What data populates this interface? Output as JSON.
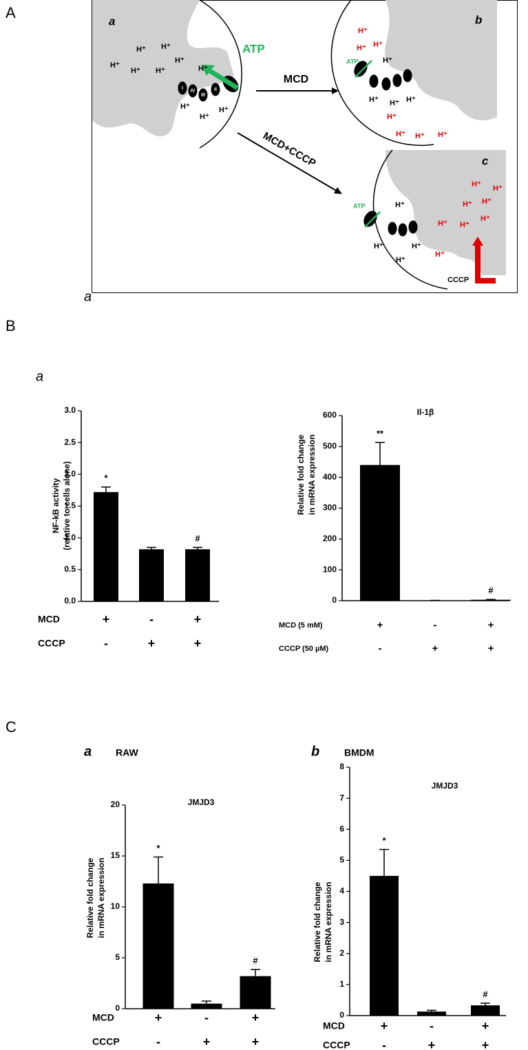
{
  "panel_labels": [
    "A",
    "B",
    "C"
  ],
  "diagram": {
    "stray_label": "a",
    "cells": [
      "a",
      "b",
      "c"
    ],
    "arrows": [
      "MCD",
      "MCD+CCCP"
    ],
    "atp": "ATP",
    "uncoupler": "CCCP",
    "proton": "H⁺",
    "complexes": [
      "I",
      "IV",
      "III",
      "II"
    ]
  },
  "sub_labels": {
    "B": "a",
    "C": [
      "a",
      "b"
    ],
    "C_cells": [
      "RAW",
      "BMDM"
    ]
  },
  "chart_data": [
    {
      "type": "bar",
      "ylabel": [
        "NF-kB activity",
        "(relative to cells alone)"
      ],
      "categories": [
        null,
        null,
        null
      ],
      "values": [
        1.72,
        0.82,
        0.82
      ],
      "errors": [
        0.08,
        0.03,
        0.03
      ],
      "color": "#000000",
      "ylim": [
        0,
        3
      ],
      "yticks": [
        {
          "value": 0,
          "label": "0.0"
        },
        0.5,
        {
          "value": 1,
          "label": "1.0"
        },
        1.5,
        {
          "value": 2,
          "label": "2.0"
        },
        2.5,
        {
          "value": 3,
          "label": "3.0"
        }
      ],
      "bar_annotations": [
        {
          "bar": 0,
          "text": "*"
        },
        {
          "bar": 2,
          "text": "#"
        }
      ],
      "treatments": [
        {
          "label": "MCD",
          "signs": [
            "+",
            "-",
            "+"
          ]
        },
        {
          "label": "CCCP",
          "signs": [
            "-",
            "+",
            "+"
          ]
        }
      ]
    },
    {
      "type": "bar",
      "title": "Il-1β",
      "ylabel": [
        "Relative fold change",
        "in mRNA expression"
      ],
      "categories": [
        null,
        null,
        null
      ],
      "values": [
        440,
        1,
        3
      ],
      "errors": [
        73,
        0,
        1
      ],
      "color": "#000000",
      "ylim": [
        0,
        600
      ],
      "yticks": [
        0,
        100,
        200,
        300,
        400,
        500,
        600
      ],
      "bar_annotations": [
        {
          "bar": 0,
          "text": "**"
        },
        {
          "bar": 2,
          "text": "#"
        }
      ],
      "treatments": [
        {
          "label": "MCD (5 mM)",
          "signs": [
            "+",
            "-",
            "+"
          ]
        },
        {
          "label": "CCCP (50 µM)",
          "signs": [
            "-",
            "+",
            "+"
          ]
        }
      ]
    },
    {
      "type": "bar",
      "title": "JMJD3",
      "ylabel": [
        "Relative fold change",
        "in mRNA expression"
      ],
      "categories": [
        null,
        null,
        null
      ],
      "values": [
        12.3,
        0.5,
        3.2
      ],
      "errors": [
        2.6,
        0.25,
        0.65
      ],
      "color": "#000000",
      "ylim": [
        0,
        20
      ],
      "yticks": [
        0,
        5,
        10,
        15,
        20
      ],
      "bar_annotations": [
        {
          "bar": 0,
          "text": "*"
        },
        {
          "bar": 2,
          "text": "#"
        }
      ],
      "treatments": [
        {
          "label": "MCD",
          "signs": [
            "+",
            "-",
            "+"
          ]
        },
        {
          "label": "CCCP",
          "signs": [
            "-",
            "+",
            "+"
          ]
        }
      ]
    },
    {
      "type": "bar",
      "title": "JMJD3",
      "ylabel": [
        "Relative fold change",
        "in mRNA expression"
      ],
      "categories": [
        null,
        null,
        null
      ],
      "values": [
        4.5,
        0.13,
        0.33
      ],
      "errors": [
        0.85,
        0.04,
        0.07
      ],
      "color": "#000000",
      "ylim": [
        0,
        8
      ],
      "yticks": [
        0,
        1,
        2,
        3,
        4,
        5,
        6,
        7,
        8
      ],
      "bar_annotations": [
        {
          "bar": 0,
          "text": "*"
        },
        {
          "bar": 2,
          "text": "#"
        }
      ],
      "treatments": [
        {
          "label": "MCD",
          "signs": [
            "+",
            "-",
            "+"
          ]
        },
        {
          "label": "CCCP",
          "signs": [
            "-",
            "+",
            "+"
          ]
        }
      ]
    }
  ]
}
